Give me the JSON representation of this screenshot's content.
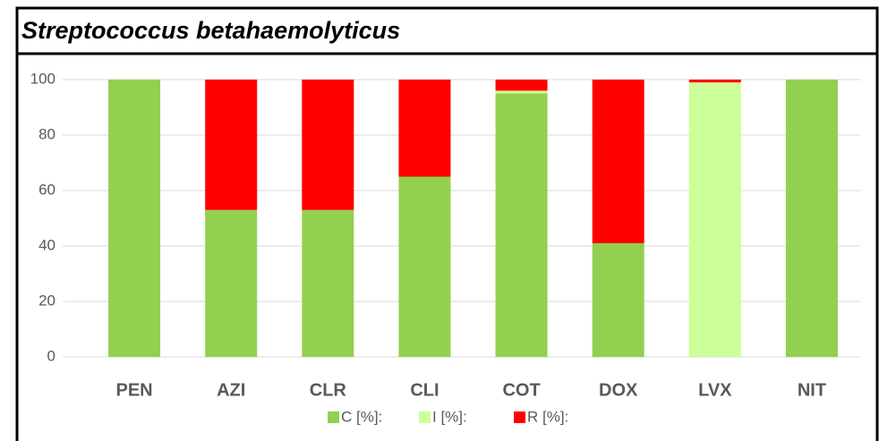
{
  "chart_data": {
    "type": "bar",
    "stacked": true,
    "title": "Streptococcus betahaemolyticus",
    "categories": [
      "PEN",
      "AZI",
      "CLR",
      "CLI",
      "COT",
      "DOX",
      "LVX",
      "NIT"
    ],
    "series": [
      {
        "name": "C [%]:",
        "color": "#92d050",
        "values": [
          100,
          53,
          53,
          65,
          95,
          41,
          0,
          100
        ]
      },
      {
        "name": "I [%]:",
        "color": "#ccff99",
        "values": [
          0,
          0,
          0,
          0,
          1,
          0,
          99,
          0
        ]
      },
      {
        "name": "R [%]:",
        "color": "#ff0000",
        "values": [
          0,
          47,
          47,
          35,
          4,
          59,
          1,
          0
        ]
      }
    ],
    "ylim": [
      0,
      100
    ],
    "yticks": [
      0,
      20,
      40,
      60,
      80,
      100
    ],
    "grid": true
  }
}
